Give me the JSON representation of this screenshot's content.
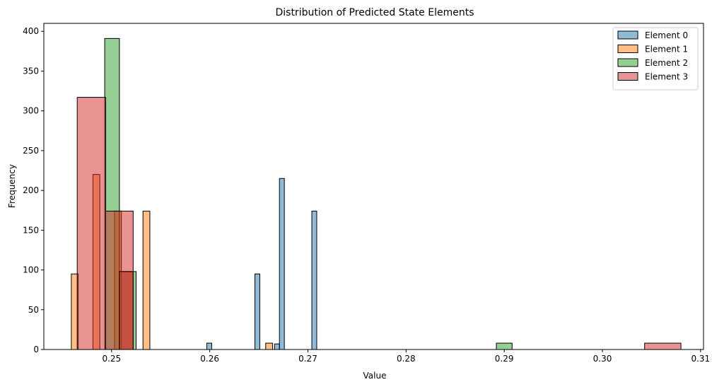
{
  "chart_data": {
    "type": "bar",
    "title": "Distribution of Predicted State Elements",
    "xlabel": "Value",
    "ylabel": "Frequency",
    "xlim": [
      0.2431,
      0.3103
    ],
    "ylim": [
      0,
      410
    ],
    "xticks": [
      0.25,
      0.26,
      0.27,
      0.28,
      0.29,
      0.3,
      0.31
    ],
    "xtick_labels": [
      "0.25",
      "0.26",
      "0.27",
      "0.28",
      "0.29",
      "0.30",
      "0.31"
    ],
    "yticks": [
      0,
      50,
      100,
      150,
      200,
      250,
      300,
      350,
      400
    ],
    "ytick_labels": [
      "0",
      "50",
      "100",
      "150",
      "200",
      "250",
      "300",
      "350",
      "400"
    ],
    "grid": false,
    "legend_position": "top-right",
    "series": [
      {
        "name": "Element 0",
        "color": "#1f77b4",
        "bins": [
          {
            "x0": 0.2597,
            "x1": 0.2602,
            "count": 8
          },
          {
            "x0": 0.2646,
            "x1": 0.2651,
            "count": 95
          },
          {
            "x0": 0.2666,
            "x1": 0.2671,
            "count": 7
          },
          {
            "x0": 0.2671,
            "x1": 0.2676,
            "count": 215
          },
          {
            "x0": 0.2704,
            "x1": 0.2709,
            "count": 174
          }
        ]
      },
      {
        "name": "Element 1",
        "color": "#ff7f0e",
        "bins": [
          {
            "x0": 0.2459,
            "x1": 0.2466,
            "count": 95
          },
          {
            "x0": 0.2481,
            "x1": 0.2488,
            "count": 220
          },
          {
            "x0": 0.2503,
            "x1": 0.251,
            "count": 174
          },
          {
            "x0": 0.2532,
            "x1": 0.2539,
            "count": 174
          },
          {
            "x0": 0.2657,
            "x1": 0.2664,
            "count": 8
          }
        ]
      },
      {
        "name": "Element 2",
        "color": "#2ca02c",
        "bins": [
          {
            "x0": 0.2493,
            "x1": 0.2508,
            "count": 391
          },
          {
            "x0": 0.2508,
            "x1": 0.2525,
            "count": 98
          },
          {
            "x0": 0.2892,
            "x1": 0.2908,
            "count": 8
          }
        ]
      },
      {
        "name": "Element 3",
        "color": "#d62728",
        "bins": [
          {
            "x0": 0.2465,
            "x1": 0.2494,
            "count": 317
          },
          {
            "x0": 0.2494,
            "x1": 0.2522,
            "count": 174
          },
          {
            "x0": 0.2522,
            "x1": 0.2551,
            "count": 0
          },
          {
            "x0": 0.2551,
            "x1": 0.258,
            "count": 0
          },
          {
            "x0": 0.258,
            "x1": 0.2609,
            "count": 0
          },
          {
            "x0": 0.2609,
            "x1": 0.2638,
            "count": 0
          },
          {
            "x0": 0.2638,
            "x1": 0.2667,
            "count": 0
          },
          {
            "x0": 0.2667,
            "x1": 0.2695,
            "count": 0
          },
          {
            "x0": 0.2695,
            "x1": 0.2724,
            "count": 0
          },
          {
            "x0": 0.2724,
            "x1": 0.2753,
            "count": 0
          },
          {
            "x0": 0.2753,
            "x1": 0.2782,
            "count": 0
          },
          {
            "x0": 0.2782,
            "x1": 0.2811,
            "count": 0
          },
          {
            "x0": 0.2811,
            "x1": 0.284,
            "count": 0
          },
          {
            "x0": 0.284,
            "x1": 0.2869,
            "count": 0
          },
          {
            "x0": 0.2869,
            "x1": 0.2898,
            "count": 0
          },
          {
            "x0": 0.2898,
            "x1": 0.2927,
            "count": 0
          },
          {
            "x0": 0.2927,
            "x1": 0.2956,
            "count": 0
          },
          {
            "x0": 0.2956,
            "x1": 0.2985,
            "count": 0
          },
          {
            "x0": 0.2985,
            "x1": 0.3014,
            "count": 0
          },
          {
            "x0": 0.3014,
            "x1": 0.3043,
            "count": 0
          },
          {
            "x0": 0.3043,
            "x1": 0.308,
            "count": 8
          }
        ],
        "overlay_bin": {
          "x0": 0.2508,
          "x1": 0.2522,
          "count": 98
        }
      }
    ]
  }
}
